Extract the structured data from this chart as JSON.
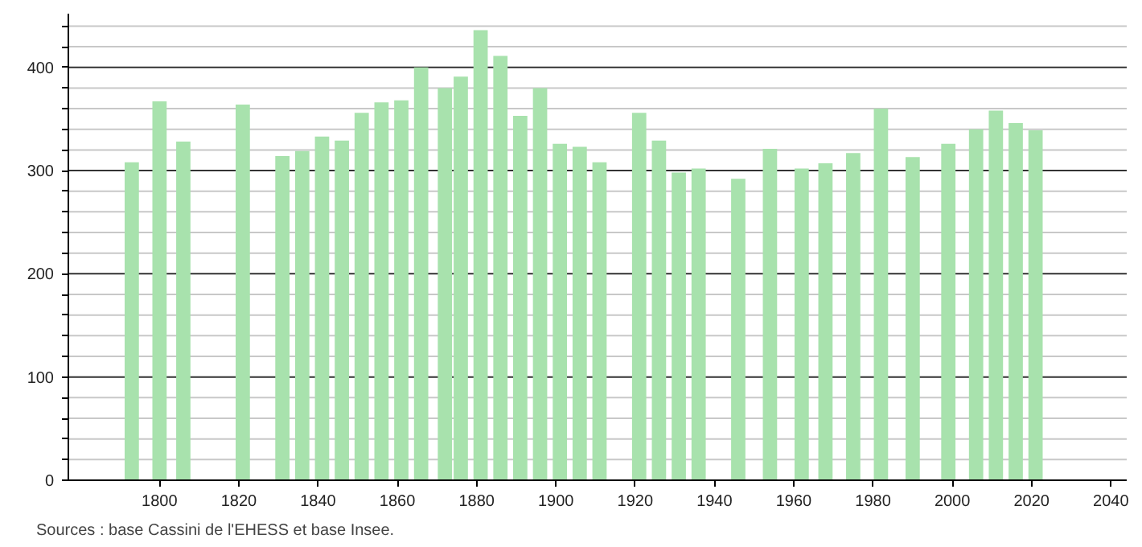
{
  "chart_data": {
    "type": "bar",
    "x": [
      1793,
      1800,
      1806,
      1821,
      1831,
      1836,
      1841,
      1846,
      1851,
      1856,
      1861,
      1866,
      1872,
      1876,
      1881,
      1886,
      1891,
      1896,
      1901,
      1906,
      1911,
      1921,
      1926,
      1931,
      1936,
      1946,
      1954,
      1962,
      1968,
      1975,
      1982,
      1990,
      1999,
      2006,
      2011,
      2016,
      2021
    ],
    "values": [
      308,
      367,
      328,
      364,
      314,
      319,
      333,
      329,
      356,
      366,
      368,
      400,
      380,
      391,
      436,
      411,
      353,
      380,
      326,
      323,
      308,
      356,
      329,
      298,
      302,
      292,
      321,
      302,
      307,
      317,
      360,
      313,
      326,
      340,
      358,
      346,
      339
    ],
    "color": "#a8e2ad",
    "xlim": [
      1777,
      2044
    ],
    "ylim": [
      0,
      452
    ],
    "xticks": [
      1800,
      1820,
      1840,
      1860,
      1880,
      1900,
      1920,
      1940,
      1960,
      1980,
      2000,
      2020,
      2040
    ],
    "yticks": [
      0,
      {
        "value": 20,
        "label": null
      },
      {
        "value": 40,
        "label": null
      },
      {
        "value": 60,
        "label": null
      },
      {
        "value": 80,
        "label": null
      },
      100,
      {
        "value": 120,
        "label": null
      },
      {
        "value": 140,
        "label": null
      },
      {
        "value": 160,
        "label": null
      },
      {
        "value": 180,
        "label": null
      },
      200,
      {
        "value": 220,
        "label": null
      },
      {
        "value": 240,
        "label": null
      },
      {
        "value": 260,
        "label": null
      },
      {
        "value": 280,
        "label": null
      },
      300,
      {
        "value": 320,
        "label": null
      },
      {
        "value": 340,
        "label": null
      },
      {
        "value": 360,
        "label": null
      },
      {
        "value": 380,
        "label": null
      },
      400,
      {
        "value": 420,
        "label": null
      },
      {
        "value": 440,
        "label": null
      }
    ],
    "grid": "y",
    "annotations": [
      "Sources : base Cassini de l'EHESS et base Insee."
    ]
  }
}
